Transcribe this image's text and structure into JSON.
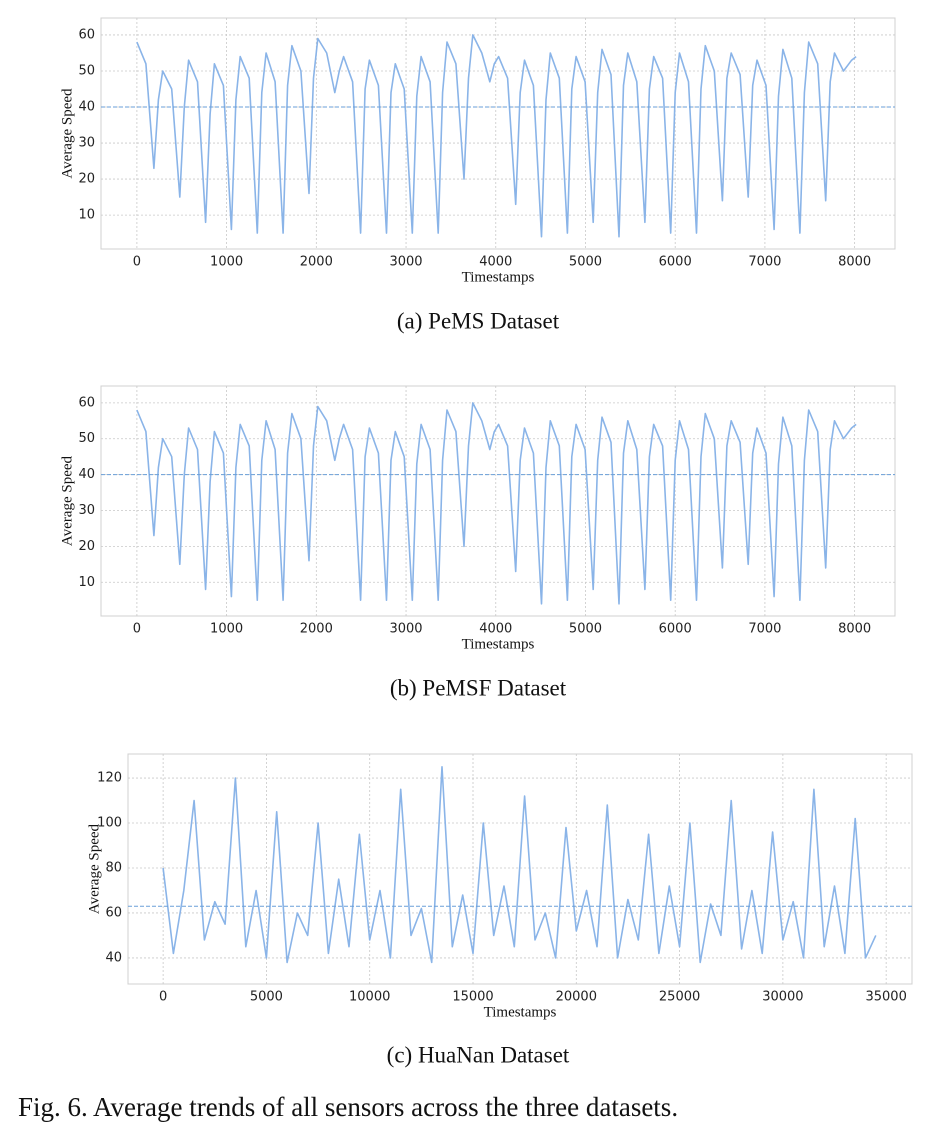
{
  "chart_data": [
    {
      "type": "line",
      "caption": "(a) PeMS Dataset",
      "x_label": "Timestamps",
      "y_label": "Average Speed",
      "color": "#8ab4e8",
      "grid": true,
      "mean_line": 40,
      "xlim": [
        -400,
        8450
      ],
      "ylim": [
        0.6,
        64.7
      ],
      "xticks": [
        0,
        1000,
        2000,
        3000,
        4000,
        5000,
        6000,
        7000,
        8000
      ],
      "yticks": [
        10,
        20,
        30,
        40,
        50,
        60
      ],
      "x": [
        0,
        100,
        190,
        240,
        288,
        388,
        478,
        528,
        576,
        676,
        766,
        816,
        864,
        964,
        1054,
        1104,
        1152,
        1252,
        1342,
        1392,
        1440,
        1540,
        1630,
        1680,
        1728,
        1828,
        1918,
        1968,
        2016,
        2116,
        2206,
        2256,
        2304,
        2404,
        2494,
        2544,
        2592,
        2692,
        2782,
        2832,
        2880,
        2980,
        3070,
        3120,
        3168,
        3268,
        3358,
        3408,
        3456,
        3556,
        3646,
        3696,
        3744,
        3844,
        3934,
        3984,
        4032,
        4132,
        4222,
        4272,
        4320,
        4420,
        4510,
        4560,
        4608,
        4708,
        4798,
        4848,
        4896,
        4996,
        5086,
        5136,
        5184,
        5284,
        5374,
        5424,
        5472,
        5572,
        5662,
        5712,
        5760,
        5860,
        5950,
        6000,
        6048,
        6148,
        6238,
        6288,
        6336,
        6436,
        6526,
        6576,
        6624,
        6724,
        6814,
        6864,
        6912,
        7012,
        7102,
        7152,
        7200,
        7300,
        7390,
        7440,
        7488,
        7588,
        7678,
        7728,
        7776,
        7876,
        7966,
        8016
      ],
      "values": [
        58,
        52,
        23,
        42,
        50,
        45,
        15,
        40,
        53,
        47,
        8,
        38,
        52,
        46,
        6,
        42,
        54,
        48,
        5,
        44,
        55,
        47,
        5,
        46,
        57,
        50,
        16,
        48,
        59,
        55,
        44,
        50,
        54,
        47,
        5,
        45,
        53,
        46,
        5,
        44,
        52,
        45,
        5,
        43,
        54,
        47,
        5,
        44,
        58,
        52,
        20,
        48,
        60,
        55,
        47,
        52,
        54,
        48,
        13,
        44,
        53,
        46,
        4,
        42,
        55,
        48,
        5,
        45,
        54,
        47,
        8,
        44,
        56,
        49,
        4,
        46,
        55,
        47,
        8,
        45,
        54,
        48,
        5,
        44,
        55,
        47,
        5,
        45,
        57,
        50,
        14,
        48,
        55,
        49,
        15,
        46,
        53,
        46,
        6,
        43,
        56,
        48,
        5,
        44,
        58,
        52,
        14,
        47,
        55,
        50,
        53,
        54
      ]
    },
    {
      "type": "line",
      "caption": "(b) PeMSF Dataset",
      "x_label": "Timestamps",
      "y_label": "Average Speed",
      "color": "#8ab4e8",
      "grid": true,
      "mean_line": 40,
      "xlim": [
        -400,
        8450
      ],
      "ylim": [
        0.6,
        64.7
      ],
      "xticks": [
        0,
        1000,
        2000,
        3000,
        4000,
        5000,
        6000,
        7000,
        8000
      ],
      "yticks": [
        10,
        20,
        30,
        40,
        50,
        60
      ],
      "x": [
        0,
        100,
        190,
        240,
        288,
        388,
        478,
        528,
        576,
        676,
        766,
        816,
        864,
        964,
        1054,
        1104,
        1152,
        1252,
        1342,
        1392,
        1440,
        1540,
        1630,
        1680,
        1728,
        1828,
        1918,
        1968,
        2016,
        2116,
        2206,
        2256,
        2304,
        2404,
        2494,
        2544,
        2592,
        2692,
        2782,
        2832,
        2880,
        2980,
        3070,
        3120,
        3168,
        3268,
        3358,
        3408,
        3456,
        3556,
        3646,
        3696,
        3744,
        3844,
        3934,
        3984,
        4032,
        4132,
        4222,
        4272,
        4320,
        4420,
        4510,
        4560,
        4608,
        4708,
        4798,
        4848,
        4896,
        4996,
        5086,
        5136,
        5184,
        5284,
        5374,
        5424,
        5472,
        5572,
        5662,
        5712,
        5760,
        5860,
        5950,
        6000,
        6048,
        6148,
        6238,
        6288,
        6336,
        6436,
        6526,
        6576,
        6624,
        6724,
        6814,
        6864,
        6912,
        7012,
        7102,
        7152,
        7200,
        7300,
        7390,
        7440,
        7488,
        7588,
        7678,
        7728,
        7776,
        7876,
        7966,
        8016
      ],
      "values": [
        58,
        52,
        23,
        42,
        50,
        45,
        15,
        40,
        53,
        47,
        8,
        38,
        52,
        46,
        6,
        42,
        54,
        48,
        5,
        44,
        55,
        47,
        5,
        46,
        57,
        50,
        16,
        48,
        59,
        55,
        44,
        50,
        54,
        47,
        5,
        45,
        53,
        46,
        5,
        44,
        52,
        45,
        5,
        43,
        54,
        47,
        5,
        44,
        58,
        52,
        20,
        48,
        60,
        55,
        47,
        52,
        54,
        48,
        13,
        44,
        53,
        46,
        4,
        42,
        55,
        48,
        5,
        45,
        54,
        47,
        8,
        44,
        56,
        49,
        4,
        46,
        55,
        47,
        8,
        45,
        54,
        48,
        5,
        44,
        55,
        47,
        5,
        45,
        57,
        50,
        14,
        48,
        55,
        49,
        15,
        46,
        53,
        46,
        6,
        43,
        56,
        48,
        5,
        44,
        58,
        52,
        14,
        47,
        55,
        50,
        53,
        54
      ]
    },
    {
      "type": "line",
      "caption": "(c) HuaNan Dataset",
      "x_label": "Timestamps",
      "y_label": "Average Speed",
      "color": "#8ab4e8",
      "grid": true,
      "mean_line": 63,
      "xlim": [
        -1700,
        36250
      ],
      "ylim": [
        28.4,
        130.7
      ],
      "xticks": [
        0,
        5000,
        10000,
        15000,
        20000,
        25000,
        30000,
        35000
      ],
      "yticks": [
        40,
        60,
        80,
        100,
        120
      ],
      "x": [
        0,
        500,
        1000,
        1500,
        2000,
        2500,
        3000,
        3500,
        4000,
        4500,
        5000,
        5500,
        6000,
        6500,
        7000,
        7500,
        8000,
        8500,
        9000,
        9500,
        10000,
        10500,
        11000,
        11500,
        12000,
        12500,
        13000,
        13500,
        14000,
        14500,
        15000,
        15500,
        16000,
        16500,
        17000,
        17500,
        18000,
        18500,
        19000,
        19500,
        20000,
        20500,
        21000,
        21500,
        22000,
        22500,
        23000,
        23500,
        24000,
        24500,
        25000,
        25500,
        26000,
        26500,
        27000,
        27500,
        28000,
        28500,
        29000,
        29500,
        30000,
        30500,
        31000,
        31500,
        32000,
        32500,
        33000,
        33500,
        34000,
        34500
      ],
      "values": [
        80,
        42,
        70,
        110,
        48,
        65,
        55,
        120,
        45,
        70,
        40,
        105,
        38,
        60,
        50,
        100,
        42,
        75,
        45,
        95,
        48,
        70,
        40,
        115,
        50,
        62,
        38,
        125,
        45,
        68,
        42,
        100,
        50,
        72,
        45,
        112,
        48,
        60,
        40,
        98,
        52,
        70,
        45,
        108,
        40,
        66,
        48,
        95,
        42,
        72,
        45,
        100,
        38,
        64,
        50,
        110,
        44,
        70,
        42,
        96,
        48,
        65,
        40,
        115,
        45,
        72,
        42,
        102,
        40,
        50
      ]
    }
  ],
  "figure_caption": "Fig. 6.  Average trends of all sensors across the three datasets."
}
